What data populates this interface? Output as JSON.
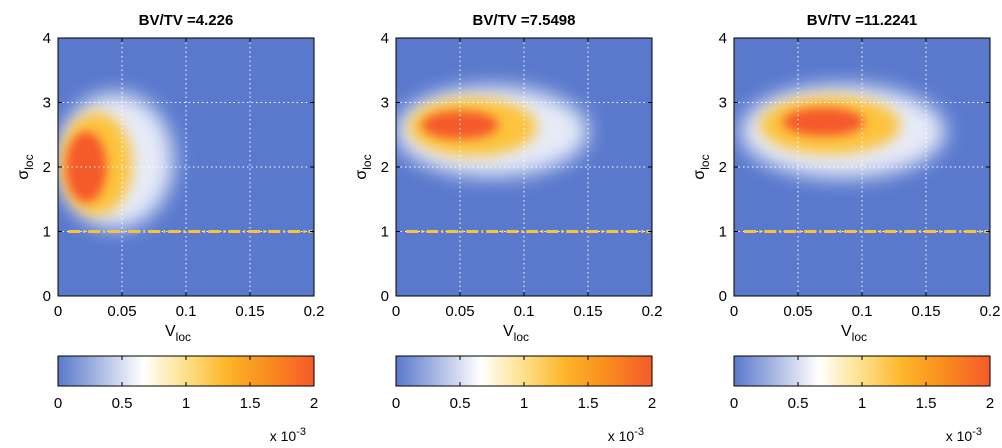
{
  "chart_data": [
    {
      "type": "heatmap",
      "title": "BV/TV =4.226",
      "xlabel": "V",
      "xlabel_sub": "loc",
      "ylabel": "σ",
      "ylabel_sub": "loc",
      "xlim": [
        0,
        0.2
      ],
      "ylim": [
        0,
        4
      ],
      "xticks": [
        "0",
        "0.05",
        "0.1",
        "0.15",
        "0.2"
      ],
      "yticks": [
        "0",
        "1",
        "2",
        "3",
        "4"
      ],
      "grid": true,
      "reference_line": {
        "y": 1,
        "color": "#f5c242",
        "style": "dash-dot"
      },
      "density_peak": {
        "x": 0.02,
        "y": 2.0
      },
      "colorbar": {
        "min": 0,
        "max": 2,
        "ticks": [
          "0",
          "0.5",
          "1",
          "1.5",
          "2"
        ],
        "exponent_label": "x 10",
        "exponent": "-3"
      }
    },
    {
      "type": "heatmap",
      "title": "BV/TV =7.5498",
      "xlabel": "V",
      "xlabel_sub": "loc",
      "ylabel": "σ",
      "ylabel_sub": "loc",
      "xlim": [
        0,
        0.2
      ],
      "ylim": [
        0,
        4
      ],
      "xticks": [
        "0",
        "0.05",
        "0.1",
        "0.15",
        "0.2"
      ],
      "yticks": [
        "0",
        "1",
        "2",
        "3",
        "4"
      ],
      "grid": true,
      "reference_line": {
        "y": 1,
        "color": "#f5c242",
        "style": "dash-dot"
      },
      "density_peak": {
        "x": 0.05,
        "y": 2.65
      },
      "colorbar": {
        "min": 0,
        "max": 2,
        "ticks": [
          "0",
          "0.5",
          "1",
          "1.5",
          "2"
        ],
        "exponent_label": "x 10",
        "exponent": "-3"
      }
    },
    {
      "type": "heatmap",
      "title": "BV/TV =11.2241",
      "xlabel": "V",
      "xlabel_sub": "loc",
      "ylabel": "σ",
      "ylabel_sub": "loc",
      "xlim": [
        0,
        0.2
      ],
      "ylim": [
        0,
        4
      ],
      "xticks": [
        "0",
        "0.05",
        "0.1",
        "0.15",
        "0.2"
      ],
      "yticks": [
        "0",
        "1",
        "2",
        "3",
        "4"
      ],
      "grid": true,
      "reference_line": {
        "y": 1,
        "color": "#f5c242",
        "style": "dash-dot"
      },
      "density_peak": {
        "x": 0.07,
        "y": 2.7
      },
      "colorbar": {
        "min": 0,
        "max": 2,
        "ticks": [
          "0",
          "0.5",
          "1",
          "1.5",
          "2"
        ],
        "exponent_label": "x 10",
        "exponent": "-3"
      }
    }
  ],
  "colors": {
    "background": "#5a79cd",
    "colormap": [
      "#5a79cd",
      "#9fb0e0",
      "#ffffff",
      "#fde08a",
      "#fdb528",
      "#f98a1f",
      "#f55a2a"
    ],
    "grid": "#ffffff"
  }
}
